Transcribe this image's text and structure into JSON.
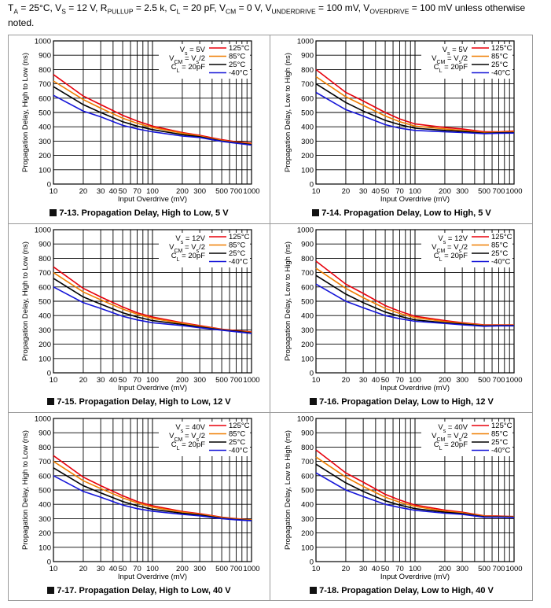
{
  "header": {
    "p1": "T",
    "s1": "A",
    "p2": " = 25°C, V",
    "s2": "S",
    "p3": " = 12 V, R",
    "s3": "PULLUP",
    "p4": " = 2.5 k, C",
    "s4": "L",
    "p5": " = 20 pF, V",
    "s5": "CM",
    "p6": " = 0 V, V",
    "s6": "UNDERDRIVE",
    "p7": " = 100 mV, V",
    "s7": "OVERDRIVE",
    "p8": " = 100 mV unless otherwise noted."
  },
  "colors": {
    "c125": "#e8000b",
    "c85": "#ef7d00",
    "c25": "#000000",
    "cm40": "#1515d8",
    "grid": "#000000",
    "frame": "#9a9a9a"
  },
  "legend": [
    "125°C",
    "85°C",
    "25°C",
    "-40°C"
  ],
  "chart_data": [
    {
      "id": "fig-7-13",
      "type": "line",
      "title_prefix": "7-13. ",
      "title": "Propagation Delay, High to Low, 5 V",
      "xlabel": "Input Overdrive (mV)",
      "ylabel": "Propagation Delay, High to Low (ns)",
      "xscale": "log",
      "xlim": [
        10,
        1000
      ],
      "ylim": [
        0,
        1000
      ],
      "xticks": [
        "10",
        "20",
        "30",
        "40",
        "50",
        "70",
        "100",
        "200",
        "300",
        "500",
        "700",
        "1000"
      ],
      "yticks": [
        "0",
        "100",
        "200",
        "300",
        "400",
        "500",
        "600",
        "700",
        "800",
        "900",
        "1000"
      ],
      "conditions": [
        "Vs = 5V",
        "VCM = Vs/2",
        "CL = 20pF"
      ],
      "x": [
        10,
        20,
        30,
        50,
        70,
        100,
        200,
        300,
        500,
        700,
        1000
      ],
      "series": [
        {
          "name": "125°C",
          "values": [
            765,
            615,
            555,
            480,
            440,
            405,
            360,
            340,
            310,
            295,
            285
          ]
        },
        {
          "name": "85°C",
          "values": [
            720,
            590,
            530,
            460,
            425,
            395,
            355,
            335,
            305,
            292,
            280
          ]
        },
        {
          "name": "25°C",
          "values": [
            680,
            555,
            500,
            435,
            405,
            380,
            345,
            330,
            300,
            288,
            276
          ]
        },
        {
          "name": "-40°C",
          "values": [
            620,
            510,
            470,
            410,
            385,
            365,
            335,
            325,
            298,
            285,
            272
          ]
        }
      ]
    },
    {
      "id": "fig-7-14",
      "type": "line",
      "title_prefix": "7-14. ",
      "title": "Propagation Delay, Low to High, 5 V",
      "xlabel": "Input Overdrive (mV)",
      "ylabel": "Propagation Delay, Low to High (ns)",
      "xscale": "log",
      "xlim": [
        10,
        1000
      ],
      "ylim": [
        0,
        1000
      ],
      "xticks": [
        "10",
        "20",
        "30",
        "40",
        "50",
        "70",
        "100",
        "200",
        "300",
        "500",
        "700",
        "1000"
      ],
      "yticks": [
        "0",
        "100",
        "200",
        "300",
        "400",
        "500",
        "600",
        "700",
        "800",
        "900",
        "1000"
      ],
      "conditions": [
        "Vs = 5V",
        "VCM = Vs/2",
        "CL = 20pF"
      ],
      "x": [
        10,
        20,
        30,
        50,
        70,
        100,
        200,
        300,
        500,
        700,
        1000
      ],
      "series": [
        {
          "name": "125°C",
          "values": [
            800,
            640,
            580,
            500,
            455,
            420,
            395,
            385,
            365,
            365,
            370
          ]
        },
        {
          "name": "85°C",
          "values": [
            750,
            610,
            550,
            475,
            435,
            405,
            385,
            375,
            360,
            362,
            365
          ]
        },
        {
          "name": "25°C",
          "values": [
            700,
            570,
            510,
            445,
            415,
            390,
            375,
            368,
            355,
            358,
            360
          ]
        },
        {
          "name": "-40°C",
          "values": [
            640,
            520,
            475,
            415,
            390,
            375,
            365,
            360,
            352,
            355,
            356
          ]
        }
      ]
    },
    {
      "id": "fig-7-15",
      "type": "line",
      "title_prefix": "7-15. ",
      "title": "Propagation Delay, High to Low, 12 V",
      "xlabel": "Input Overdrive (mV)",
      "ylabel": "Propagation Delay, High to Low (ns)",
      "xscale": "log",
      "xlim": [
        10,
        1000
      ],
      "ylim": [
        0,
        1000
      ],
      "xticks": [
        "10",
        "20",
        "30",
        "40",
        "50",
        "70",
        "100",
        "200",
        "300",
        "500",
        "700",
        "1000"
      ],
      "yticks": [
        "0",
        "100",
        "200",
        "300",
        "400",
        "500",
        "600",
        "700",
        "800",
        "900",
        "1000"
      ],
      "conditions": [
        "Vs = 12V",
        "VCM = Vs/2",
        "CL = 20pF"
      ],
      "x": [
        10,
        20,
        30,
        50,
        70,
        100,
        200,
        300,
        500,
        700,
        1000
      ],
      "series": [
        {
          "name": "125°C",
          "values": [
            740,
            590,
            530,
            460,
            420,
            390,
            350,
            330,
            305,
            295,
            285
          ]
        },
        {
          "name": "85°C",
          "values": [
            700,
            565,
            510,
            445,
            410,
            380,
            345,
            325,
            302,
            292,
            282
          ]
        },
        {
          "name": "25°C",
          "values": [
            660,
            530,
            480,
            420,
            390,
            365,
            338,
            320,
            300,
            290,
            278
          ]
        },
        {
          "name": "-40°C",
          "values": [
            600,
            490,
            450,
            395,
            370,
            350,
            330,
            315,
            298,
            287,
            275
          ]
        }
      ]
    },
    {
      "id": "fig-7-16",
      "type": "line",
      "title_prefix": "7-16. ",
      "title": "Propagation Delay, Low to High, 12 V",
      "xlabel": "Input Overdrive (mV)",
      "ylabel": "Propagation Delay, Low to High (ns)",
      "xscale": "log",
      "xlim": [
        10,
        1000
      ],
      "ylim": [
        0,
        1000
      ],
      "xticks": [
        "10",
        "20",
        "30",
        "40",
        "50",
        "70",
        "100",
        "200",
        "300",
        "500",
        "700",
        "1000"
      ],
      "yticks": [
        "0",
        "100",
        "200",
        "300",
        "400",
        "500",
        "600",
        "700",
        "800",
        "900",
        "1000"
      ],
      "conditions": [
        "Vs = 12V",
        "VCM = Vs/2",
        "CL = 20pF"
      ],
      "x": [
        10,
        20,
        30,
        50,
        70,
        100,
        200,
        300,
        500,
        700,
        1000
      ],
      "series": [
        {
          "name": "125°C",
          "values": [
            780,
            620,
            555,
            470,
            430,
            395,
            365,
            350,
            335,
            335,
            335
          ]
        },
        {
          "name": "85°C",
          "values": [
            730,
            590,
            525,
            450,
            415,
            385,
            358,
            345,
            332,
            333,
            333
          ]
        },
        {
          "name": "25°C",
          "values": [
            680,
            550,
            490,
            425,
            395,
            370,
            350,
            340,
            328,
            330,
            330
          ]
        },
        {
          "name": "-40°C",
          "values": [
            620,
            500,
            455,
            400,
            378,
            360,
            345,
            335,
            325,
            328,
            328
          ]
        }
      ]
    },
    {
      "id": "fig-7-17",
      "type": "line",
      "title_prefix": "7-17. ",
      "title": "Propagation Delay, High to Low, 40 V",
      "xlabel": "Input Overdrive (mV)",
      "ylabel": "Propagation Delay, High to Low (ns)",
      "xscale": "log",
      "xlim": [
        10,
        1000
      ],
      "ylim": [
        0,
        1000
      ],
      "xticks": [
        "10",
        "20",
        "30",
        "40",
        "50",
        "70",
        "100",
        "200",
        "300",
        "500",
        "700",
        "1000"
      ],
      "yticks": [
        "0",
        "100",
        "200",
        "300",
        "400",
        "500",
        "600",
        "700",
        "800",
        "900",
        "1000"
      ],
      "conditions": [
        "Vs = 40V",
        "VCM = Vs/2",
        "CL = 20pF"
      ],
      "x": [
        10,
        20,
        30,
        50,
        70,
        100,
        200,
        300,
        500,
        700,
        1000
      ],
      "series": [
        {
          "name": "125°C",
          "values": [
            740,
            590,
            530,
            460,
            420,
            390,
            350,
            335,
            310,
            300,
            292
          ]
        },
        {
          "name": "85°C",
          "values": [
            700,
            565,
            510,
            445,
            410,
            380,
            345,
            330,
            307,
            297,
            290
          ]
        },
        {
          "name": "25°C",
          "values": [
            655,
            530,
            480,
            420,
            390,
            365,
            338,
            325,
            303,
            294,
            287
          ]
        },
        {
          "name": "-40°C",
          "values": [
            600,
            490,
            450,
            395,
            370,
            352,
            330,
            320,
            300,
            292,
            285
          ]
        }
      ]
    },
    {
      "id": "fig-7-18",
      "type": "line",
      "title_prefix": "7-18. ",
      "title": "Propagation Delay, Low to High, 40 V",
      "xlabel": "Input Overdrive (mV)",
      "ylabel": "Propagation Delay, Low to High (ns)",
      "xscale": "log",
      "xlim": [
        10,
        1000
      ],
      "ylim": [
        0,
        1000
      ],
      "xticks": [
        "10",
        "20",
        "30",
        "40",
        "50",
        "70",
        "100",
        "200",
        "300",
        "500",
        "700",
        "1000"
      ],
      "yticks": [
        "0",
        "100",
        "200",
        "300",
        "400",
        "500",
        "600",
        "700",
        "800",
        "900",
        "1000"
      ],
      "conditions": [
        "Vs = 40V",
        "VCM = Vs/2",
        "CL = 20pF"
      ],
      "x": [
        10,
        20,
        30,
        50,
        70,
        100,
        200,
        300,
        500,
        700,
        1000
      ],
      "series": [
        {
          "name": "125°C",
          "values": [
            780,
            620,
            555,
            470,
            430,
            395,
            360,
            345,
            320,
            318,
            315
          ]
        },
        {
          "name": "85°C",
          "values": [
            730,
            590,
            525,
            450,
            415,
            385,
            352,
            340,
            317,
            315,
            313
          ]
        },
        {
          "name": "25°C",
          "values": [
            680,
            550,
            490,
            425,
            395,
            370,
            345,
            335,
            313,
            312,
            310
          ]
        },
        {
          "name": "-40°C",
          "values": [
            620,
            500,
            455,
            400,
            378,
            358,
            338,
            330,
            310,
            310,
            308
          ]
        }
      ]
    }
  ]
}
